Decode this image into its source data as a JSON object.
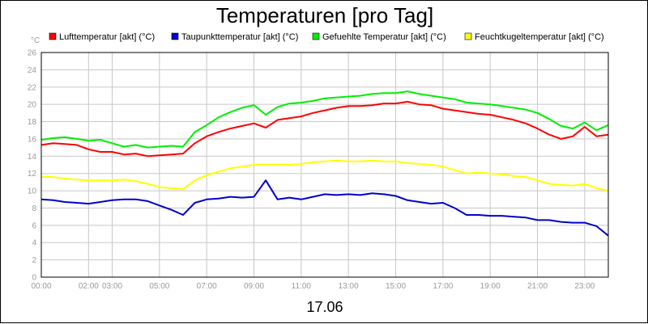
{
  "chart_data": {
    "type": "line",
    "title": "Temperaturen [pro Tag]",
    "ylabel": "°C",
    "xlabel": "17.06",
    "ylim": [
      0,
      26
    ],
    "yticks": [
      0,
      2,
      4,
      6,
      8,
      10,
      12,
      14,
      16,
      18,
      20,
      22,
      24,
      26
    ],
    "xlim": [
      0,
      24
    ],
    "xticks": [
      {
        "v": 0,
        "label": "00:00"
      },
      {
        "v": 2,
        "label": "02:00"
      },
      {
        "v": 3,
        "label": "03:00"
      },
      {
        "v": 5,
        "label": "05:00"
      },
      {
        "v": 7,
        "label": "07:00"
      },
      {
        "v": 9,
        "label": "09:00"
      },
      {
        "v": 11,
        "label": "11:00"
      },
      {
        "v": 13,
        "label": "13:00"
      },
      {
        "v": 15,
        "label": "15:00"
      },
      {
        "v": 17,
        "label": "17:00"
      },
      {
        "v": 19,
        "label": "19:00"
      },
      {
        "v": 21,
        "label": "21:00"
      },
      {
        "v": 23,
        "label": "23:00"
      }
    ],
    "grid": true,
    "x": [
      0,
      0.5,
      1,
      1.5,
      2,
      2.5,
      3,
      3.5,
      4,
      4.5,
      5,
      5.5,
      6,
      6.5,
      7,
      7.5,
      8,
      8.5,
      9,
      9.5,
      10,
      10.5,
      11,
      11.5,
      12,
      12.5,
      13,
      13.5,
      14,
      14.5,
      15,
      15.5,
      16,
      16.5,
      17,
      17.5,
      18,
      18.5,
      19,
      19.5,
      20,
      20.5,
      21,
      21.5,
      22,
      22.5,
      23,
      23.5,
      24
    ],
    "series": [
      {
        "name": "Lufttemperatur [akt] (°C)",
        "color": "#ff0000",
        "values": [
          15.3,
          15.5,
          15.4,
          15.3,
          14.8,
          14.5,
          14.5,
          14.2,
          14.3,
          14.0,
          14.1,
          14.2,
          14.3,
          15.5,
          16.3,
          16.8,
          17.2,
          17.5,
          17.8,
          17.3,
          18.2,
          18.4,
          18.6,
          19.0,
          19.3,
          19.6,
          19.8,
          19.8,
          19.9,
          20.1,
          20.1,
          20.3,
          20.0,
          19.9,
          19.5,
          19.3,
          19.1,
          18.9,
          18.8,
          18.5,
          18.2,
          17.8,
          17.2,
          16.5,
          16.0,
          16.3,
          17.4,
          16.3,
          16.5
        ]
      },
      {
        "name": "Taupunkttemperatur [akt] (°C)",
        "color": "#0000cc",
        "values": [
          9.0,
          8.9,
          8.7,
          8.6,
          8.5,
          8.7,
          8.9,
          9.0,
          9.0,
          8.8,
          8.3,
          7.8,
          7.2,
          8.6,
          9.0,
          9.1,
          9.3,
          9.2,
          9.3,
          11.2,
          9.0,
          9.2,
          9.0,
          9.3,
          9.6,
          9.5,
          9.6,
          9.5,
          9.7,
          9.6,
          9.4,
          8.9,
          8.7,
          8.5,
          8.6,
          8.0,
          7.2,
          7.2,
          7.1,
          7.1,
          7.0,
          6.9,
          6.6,
          6.6,
          6.4,
          6.3,
          6.3,
          5.9,
          4.8
        ]
      },
      {
        "name": "Gefuehlte Temperatur [akt] (°C)",
        "color": "#00ee00",
        "values": [
          15.9,
          16.1,
          16.2,
          16.0,
          15.8,
          15.9,
          15.5,
          15.1,
          15.3,
          15.0,
          15.1,
          15.2,
          15.1,
          16.8,
          17.6,
          18.5,
          19.1,
          19.6,
          19.9,
          18.8,
          19.7,
          20.1,
          20.2,
          20.4,
          20.7,
          20.8,
          20.9,
          21.0,
          21.2,
          21.3,
          21.3,
          21.5,
          21.2,
          21.0,
          20.8,
          20.6,
          20.2,
          20.1,
          20.0,
          19.8,
          19.6,
          19.4,
          19.0,
          18.3,
          17.5,
          17.2,
          17.9,
          17.0,
          17.6
        ]
      },
      {
        "name": "Feuchtkugeltemperatur [akt] (°C)",
        "color": "#ffff00",
        "values": [
          11.6,
          11.6,
          11.4,
          11.3,
          11.2,
          11.2,
          11.2,
          11.3,
          11.1,
          10.8,
          10.4,
          10.3,
          10.2,
          11.2,
          11.8,
          12.2,
          12.6,
          12.8,
          13.0,
          13.0,
          13.0,
          13.0,
          13.1,
          13.3,
          13.4,
          13.5,
          13.4,
          13.4,
          13.5,
          13.4,
          13.4,
          13.2,
          13.1,
          13.0,
          12.8,
          12.4,
          12.0,
          12.1,
          12.0,
          11.9,
          11.7,
          11.6,
          11.2,
          10.8,
          10.7,
          10.6,
          10.8,
          10.3,
          10.0
        ]
      }
    ]
  }
}
